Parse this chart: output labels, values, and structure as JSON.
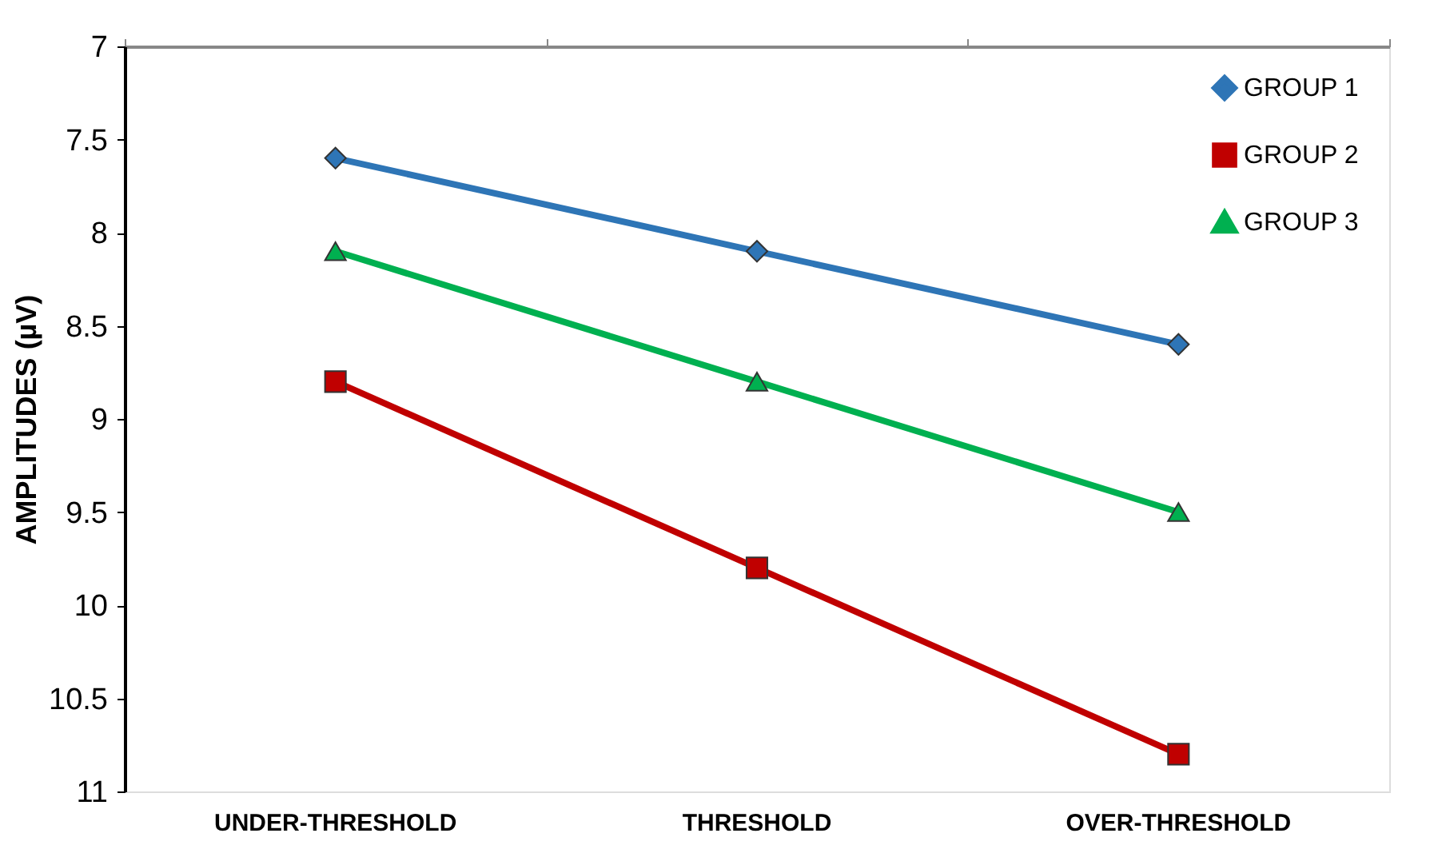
{
  "chart_data": {
    "type": "line",
    "ylabel": "AMPLITUDES (µV)",
    "categories": [
      "UNDER-THRESHOLD",
      "THRESHOLD",
      "OVER-THRESHOLD"
    ],
    "series": [
      {
        "name": "GROUP 1",
        "color": "#2e75b6",
        "marker": "diamond",
        "values": [
          7.6,
          8.1,
          8.6
        ]
      },
      {
        "name": "GROUP 2",
        "color": "#c00000",
        "marker": "square",
        "values": [
          8.8,
          9.8,
          10.8
        ]
      },
      {
        "name": "GROUP 3",
        "color": "#00b050",
        "marker": "triangle",
        "values": [
          8.1,
          8.8,
          9.5
        ]
      }
    ],
    "ylim": [
      11,
      7
    ],
    "yticks": [
      7,
      7.5,
      8,
      8.5,
      9,
      9.5,
      10,
      10.5,
      11
    ],
    "grid": false,
    "legend": "top right",
    "line_style": "solid"
  }
}
